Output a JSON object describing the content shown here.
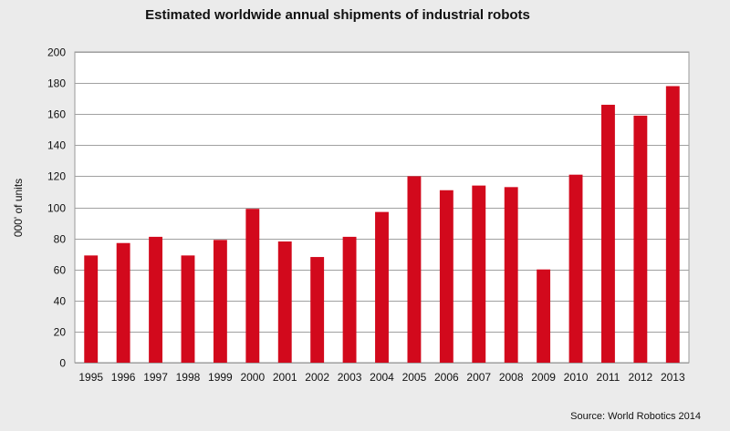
{
  "chart_data": {
    "type": "bar",
    "title": "Estimated worldwide annual shipments of industrial robots",
    "xlabel": "",
    "ylabel": "000' of units",
    "ylim": [
      0,
      200
    ],
    "yticks": [
      0,
      20,
      40,
      60,
      80,
      100,
      120,
      140,
      160,
      180,
      200
    ],
    "grid": true,
    "bar_color": "#d2091c",
    "categories": [
      "1995",
      "1996",
      "1997",
      "1998",
      "1999",
      "2000",
      "2001",
      "2002",
      "2003",
      "2004",
      "2005",
      "2006",
      "2007",
      "2008",
      "2009",
      "2010",
      "2011",
      "2012",
      "2013"
    ],
    "values": [
      69,
      77,
      81,
      69,
      79,
      99,
      78,
      68,
      81,
      97,
      120,
      111,
      114,
      113,
      60,
      121,
      166,
      159,
      178
    ],
    "source": "Source: World Robotics 2014"
  }
}
